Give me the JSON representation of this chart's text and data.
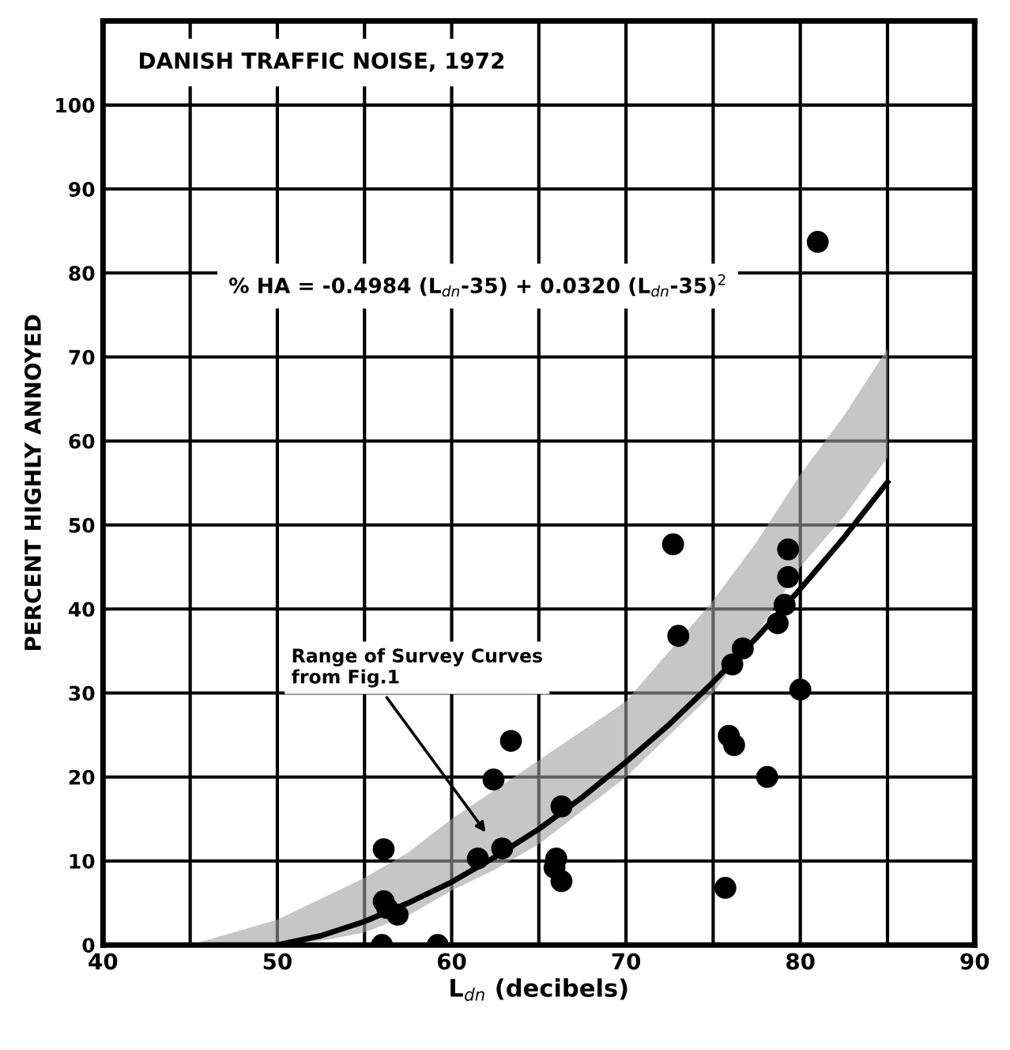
{
  "chart_data": {
    "type": "scatter",
    "title": "DANISH TRAFFIC NOISE, 1972",
    "xlabel": "L$_{dn}$ (decibels)",
    "ylabel": "PERCENT HIGHLY ANNOYED",
    "xlim": [
      40,
      90
    ],
    "ylim": [
      0,
      110
    ],
    "xticks": [
      40,
      {
        "value": 45,
        "label": null
      },
      50,
      {
        "value": 55,
        "label": null
      },
      60,
      {
        "value": 65,
        "label": null
      },
      70,
      {
        "value": 75,
        "label": null
      },
      80,
      {
        "value": 85,
        "label": null
      },
      90
    ],
    "yticks": [
      0,
      10,
      20,
      30,
      40,
      50,
      60,
      70,
      80,
      90,
      100
    ],
    "grid": true,
    "legend": false,
    "series": [
      {
        "type": "line",
        "color": "#000000",
        "line_style": "solid",
        "marker": "none",
        "x": [
          45,
          47.5,
          50,
          52.5,
          55,
          57.5,
          60,
          62.5,
          65,
          67.5,
          70,
          72.5,
          75,
          77.5,
          80,
          82.5,
          85
        ],
        "values": [
          null,
          null,
          0,
          1.1,
          2.8,
          5.0,
          7.5,
          10.5,
          13.8,
          17.6,
          21.8,
          26.3,
          31.3,
          36.6,
          42.4,
          48.5,
          55.1
        ],
        "lower": [
          0,
          0,
          0,
          0.5,
          1.5,
          3.5,
          6.5,
          9,
          12,
          16,
          20,
          25,
          30,
          37,
          45,
          51,
          58
        ],
        "upper": [
          0,
          1.5,
          3,
          5.5,
          8,
          11,
          15,
          18.5,
          22,
          25.5,
          29,
          35,
          41,
          48,
          56,
          63,
          71
        ]
      },
      {
        "color": "#000000",
        "marker": "circle",
        "x": [
          56.1,
          56.1,
          56.3,
          56.9,
          56.0,
          59.2,
          61.5,
          62.9,
          62.4,
          63.4,
          66.0,
          65.9,
          66.3,
          66.3,
          72.7,
          73.0,
          75.7,
          75.9,
          76.2,
          76.1,
          76.7,
          78.1,
          78.7,
          79.1,
          79.3,
          79.3,
          80.0,
          81.0
        ],
        "values": [
          11.4,
          5.2,
          4.4,
          3.6,
          0,
          0,
          10.3,
          11.5,
          19.7,
          24.3,
          10.3,
          9.2,
          7.6,
          16.5,
          47.7,
          36.8,
          6.8,
          24.9,
          23.8,
          33.4,
          35.3,
          20.0,
          38.3,
          40.5,
          43.8,
          47.1,
          30.4,
          83.7
        ]
      }
    ],
    "annotations": [
      "% HA = -0.4984 (L$_{dn}$-35) + 0.0320 (L$_{dn}$-35)$^{2}$",
      {
        "text": "Range of Survey Curves\nfrom Fig.1",
        "x": 62.1,
        "y": 13
      }
    ]
  }
}
